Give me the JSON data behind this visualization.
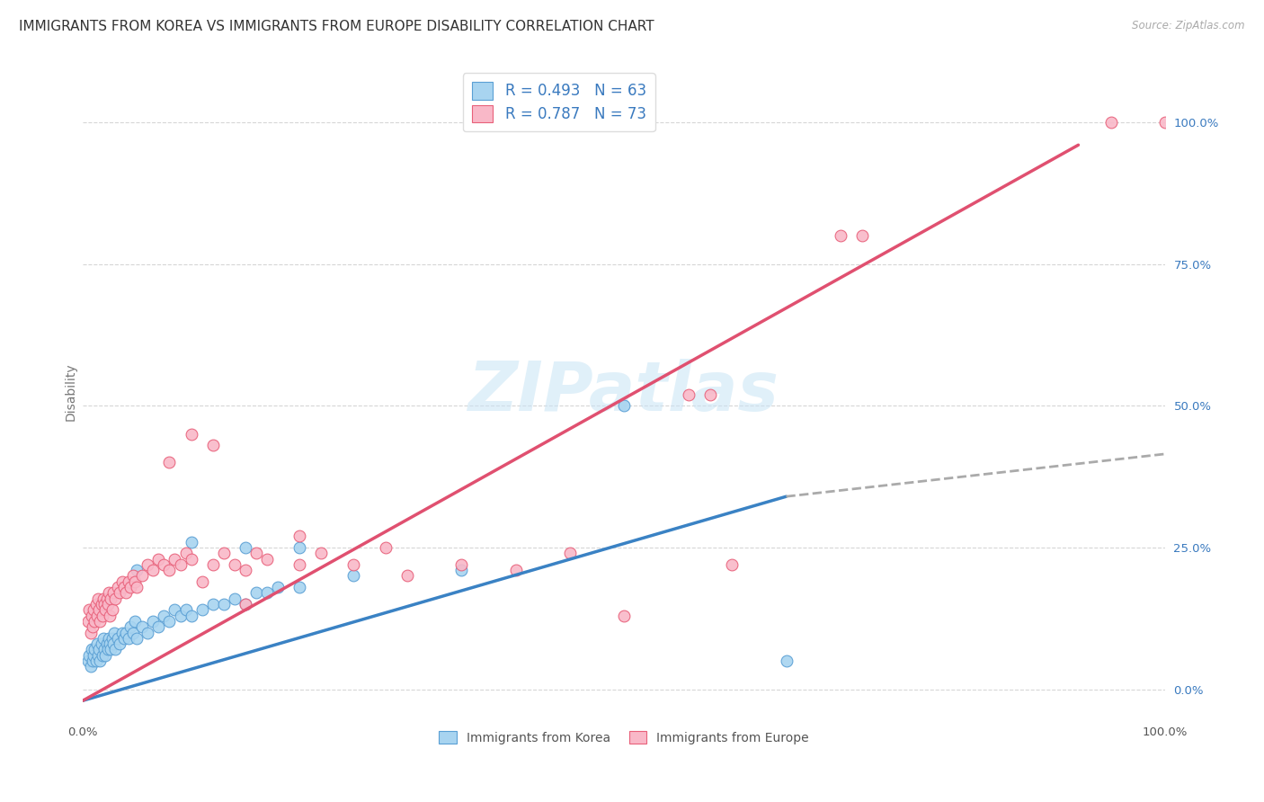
{
  "title": "IMMIGRANTS FROM KOREA VS IMMIGRANTS FROM EUROPE DISABILITY CORRELATION CHART",
  "source": "Source: ZipAtlas.com",
  "ylabel": "Disability",
  "xlim": [
    0,
    1.0
  ],
  "ylim": [
    -0.05,
    1.1
  ],
  "x_ticks": [
    0.0,
    1.0
  ],
  "x_tick_labels": [
    "0.0%",
    "100.0%"
  ],
  "y_ticks": [
    0.0,
    0.25,
    0.5,
    0.75,
    1.0
  ],
  "y_tick_labels": [
    "0.0%",
    "25.0%",
    "50.0%",
    "75.0%",
    "100.0%"
  ],
  "korea_R": 0.493,
  "korea_N": 63,
  "europe_R": 0.787,
  "europe_N": 73,
  "korea_color": "#a8d4f0",
  "europe_color": "#f9b8c8",
  "korea_edge_color": "#5a9fd4",
  "europe_edge_color": "#e8607a",
  "korea_line_color": "#3a82c4",
  "europe_line_color": "#e05070",
  "legend_label_korea": "Immigrants from Korea",
  "legend_label_europe": "Immigrants from Europe",
  "watermark": "ZIPatlas",
  "background_color": "#ffffff",
  "grid_color": "#cccccc",
  "title_fontsize": 11,
  "legend_text_color": "#3a7abf",
  "korea_scatter": [
    [
      0.005,
      0.05
    ],
    [
      0.006,
      0.06
    ],
    [
      0.007,
      0.04
    ],
    [
      0.008,
      0.07
    ],
    [
      0.009,
      0.05
    ],
    [
      0.01,
      0.06
    ],
    [
      0.011,
      0.07
    ],
    [
      0.012,
      0.05
    ],
    [
      0.013,
      0.08
    ],
    [
      0.014,
      0.06
    ],
    [
      0.015,
      0.07
    ],
    [
      0.016,
      0.05
    ],
    [
      0.017,
      0.08
    ],
    [
      0.018,
      0.06
    ],
    [
      0.019,
      0.09
    ],
    [
      0.02,
      0.07
    ],
    [
      0.021,
      0.06
    ],
    [
      0.022,
      0.08
    ],
    [
      0.023,
      0.07
    ],
    [
      0.024,
      0.09
    ],
    [
      0.025,
      0.08
    ],
    [
      0.026,
      0.07
    ],
    [
      0.027,
      0.09
    ],
    [
      0.028,
      0.08
    ],
    [
      0.029,
      0.1
    ],
    [
      0.03,
      0.07
    ],
    [
      0.032,
      0.09
    ],
    [
      0.034,
      0.08
    ],
    [
      0.036,
      0.1
    ],
    [
      0.038,
      0.09
    ],
    [
      0.04,
      0.1
    ],
    [
      0.042,
      0.09
    ],
    [
      0.044,
      0.11
    ],
    [
      0.046,
      0.1
    ],
    [
      0.048,
      0.12
    ],
    [
      0.05,
      0.09
    ],
    [
      0.055,
      0.11
    ],
    [
      0.06,
      0.1
    ],
    [
      0.065,
      0.12
    ],
    [
      0.07,
      0.11
    ],
    [
      0.075,
      0.13
    ],
    [
      0.08,
      0.12
    ],
    [
      0.085,
      0.14
    ],
    [
      0.09,
      0.13
    ],
    [
      0.095,
      0.14
    ],
    [
      0.1,
      0.13
    ],
    [
      0.11,
      0.14
    ],
    [
      0.12,
      0.15
    ],
    [
      0.13,
      0.15
    ],
    [
      0.14,
      0.16
    ],
    [
      0.15,
      0.15
    ],
    [
      0.16,
      0.17
    ],
    [
      0.17,
      0.17
    ],
    [
      0.18,
      0.18
    ],
    [
      0.2,
      0.18
    ],
    [
      0.05,
      0.21
    ],
    [
      0.1,
      0.26
    ],
    [
      0.15,
      0.25
    ],
    [
      0.2,
      0.25
    ],
    [
      0.25,
      0.2
    ],
    [
      0.35,
      0.21
    ],
    [
      0.5,
      0.5
    ],
    [
      0.65,
      0.05
    ]
  ],
  "europe_scatter": [
    [
      0.005,
      0.12
    ],
    [
      0.006,
      0.14
    ],
    [
      0.007,
      0.1
    ],
    [
      0.008,
      0.13
    ],
    [
      0.009,
      0.11
    ],
    [
      0.01,
      0.14
    ],
    [
      0.011,
      0.12
    ],
    [
      0.012,
      0.15
    ],
    [
      0.013,
      0.13
    ],
    [
      0.014,
      0.16
    ],
    [
      0.015,
      0.14
    ],
    [
      0.016,
      0.12
    ],
    [
      0.017,
      0.15
    ],
    [
      0.018,
      0.13
    ],
    [
      0.019,
      0.16
    ],
    [
      0.02,
      0.15
    ],
    [
      0.021,
      0.14
    ],
    [
      0.022,
      0.16
    ],
    [
      0.023,
      0.15
    ],
    [
      0.024,
      0.17
    ],
    [
      0.025,
      0.13
    ],
    [
      0.026,
      0.16
    ],
    [
      0.027,
      0.14
    ],
    [
      0.028,
      0.17
    ],
    [
      0.03,
      0.16
    ],
    [
      0.032,
      0.18
    ],
    [
      0.034,
      0.17
    ],
    [
      0.036,
      0.19
    ],
    [
      0.038,
      0.18
    ],
    [
      0.04,
      0.17
    ],
    [
      0.042,
      0.19
    ],
    [
      0.044,
      0.18
    ],
    [
      0.046,
      0.2
    ],
    [
      0.048,
      0.19
    ],
    [
      0.05,
      0.18
    ],
    [
      0.055,
      0.2
    ],
    [
      0.06,
      0.22
    ],
    [
      0.065,
      0.21
    ],
    [
      0.07,
      0.23
    ],
    [
      0.075,
      0.22
    ],
    [
      0.08,
      0.21
    ],
    [
      0.085,
      0.23
    ],
    [
      0.09,
      0.22
    ],
    [
      0.095,
      0.24
    ],
    [
      0.1,
      0.23
    ],
    [
      0.11,
      0.19
    ],
    [
      0.12,
      0.22
    ],
    [
      0.13,
      0.24
    ],
    [
      0.14,
      0.22
    ],
    [
      0.15,
      0.21
    ],
    [
      0.16,
      0.24
    ],
    [
      0.17,
      0.23
    ],
    [
      0.2,
      0.22
    ],
    [
      0.22,
      0.24
    ],
    [
      0.08,
      0.4
    ],
    [
      0.1,
      0.45
    ],
    [
      0.12,
      0.43
    ],
    [
      0.15,
      0.15
    ],
    [
      0.2,
      0.27
    ],
    [
      0.25,
      0.22
    ],
    [
      0.28,
      0.25
    ],
    [
      0.3,
      0.2
    ],
    [
      0.35,
      0.22
    ],
    [
      0.4,
      0.21
    ],
    [
      0.45,
      0.24
    ],
    [
      0.5,
      0.13
    ],
    [
      0.6,
      0.22
    ],
    [
      0.7,
      0.8
    ],
    [
      0.72,
      0.8
    ],
    [
      0.95,
      1.0
    ],
    [
      1.0,
      1.0
    ],
    [
      0.58,
      0.52
    ],
    [
      0.56,
      0.52
    ]
  ],
  "korea_line_solid": [
    [
      0.0,
      -0.02
    ],
    [
      0.65,
      0.34
    ]
  ],
  "korea_line_dashed": [
    [
      0.65,
      0.34
    ],
    [
      1.0,
      0.415
    ]
  ],
  "europe_line_solid": [
    [
      0.0,
      -0.02
    ],
    [
      0.92,
      0.96
    ]
  ]
}
